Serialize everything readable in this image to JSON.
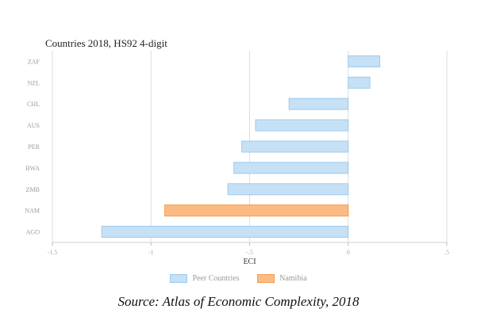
{
  "chart_data": {
    "type": "bar",
    "orientation": "horizontal",
    "title": "Countries 2018, HS92 4-digit",
    "xlabel": "ECI",
    "ylabel": "",
    "xlim": [
      -1.5,
      0.5
    ],
    "xticks": [
      "-1.5",
      "-1",
      "-.5",
      "0",
      ".5"
    ],
    "grid": true,
    "categories": [
      "ZAF",
      "NZL",
      "CHL",
      "AUS",
      "PER",
      "BWA",
      "ZMB",
      "NAM",
      "AGO"
    ],
    "values": [
      0.16,
      0.11,
      -0.3,
      -0.47,
      -0.54,
      -0.58,
      -0.61,
      -0.93,
      -1.25
    ],
    "groups": [
      "Peer Countries",
      "Peer Countries",
      "Peer Countries",
      "Peer Countries",
      "Peer Countries",
      "Peer Countries",
      "Peer Countries",
      "Namibia",
      "Peer Countries"
    ],
    "legend": [
      {
        "name": "Peer Countries",
        "fill": "#c6e0f5",
        "stroke": "#9ccbee"
      },
      {
        "name": "Namibia",
        "fill": "#fdbb84",
        "stroke": "#f39a4b"
      }
    ],
    "legend_position": "bottom"
  },
  "source": "Source: Atlas of Economic Complexity, 2018"
}
